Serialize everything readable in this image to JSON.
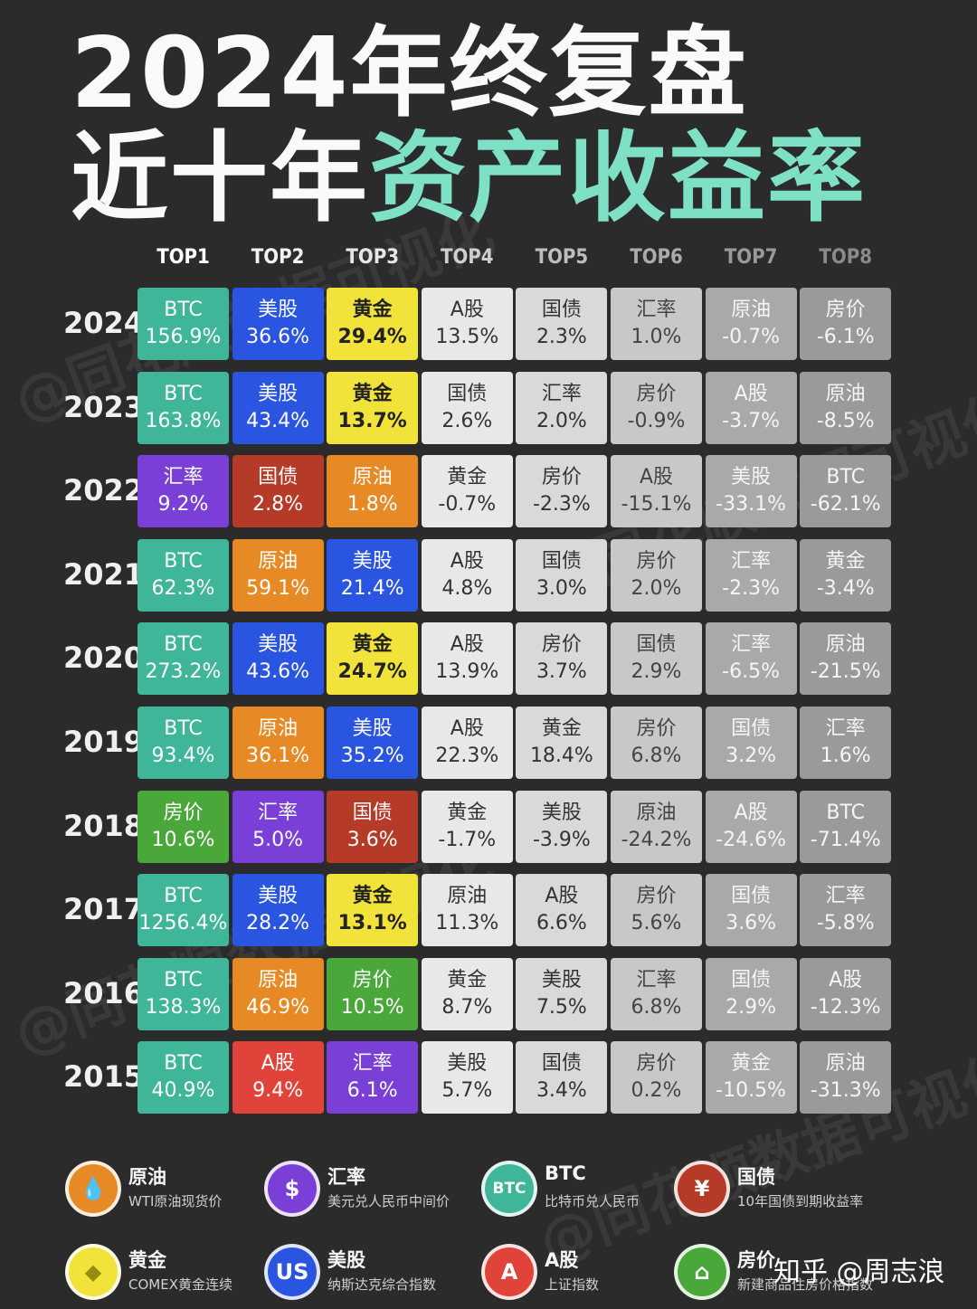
{
  "title": {
    "line1": "2024年终复盘",
    "line2_white": "近十年",
    "line2_accent": "资产收益率"
  },
  "watermark": "@同花顺数据可视化",
  "credit": "知乎 @周志浪",
  "colors": {
    "BTC": "#3fb59a",
    "美股": "#2a55e0",
    "黄金": "#f2e33a",
    "汇率": "#7a3fd6",
    "国债": "#b63a28",
    "原油": "#e78a25",
    "房价": "#4aa73a",
    "A股": "#e0433a",
    "top4": "#e8e8e8",
    "top5": "#d9d9d9",
    "top6": "#c8c8c8",
    "top7": "#a9a9a9",
    "top8": "#9a9a9a"
  },
  "chart_data": {
    "type": "table",
    "columns": [
      "TOP1",
      "TOP2",
      "TOP3",
      "TOP4",
      "TOP5",
      "TOP6",
      "TOP7",
      "TOP8"
    ],
    "rows": [
      {
        "year": "2024",
        "cells": [
          [
            "BTC",
            "156.9%"
          ],
          [
            "美股",
            "36.6%"
          ],
          [
            "黄金",
            "29.4%"
          ],
          [
            "A股",
            "13.5%"
          ],
          [
            "国债",
            "2.3%"
          ],
          [
            "汇率",
            "1.0%"
          ],
          [
            "原油",
            "-0.7%"
          ],
          [
            "房价",
            "-6.1%"
          ]
        ]
      },
      {
        "year": "2023",
        "cells": [
          [
            "BTC",
            "163.8%"
          ],
          [
            "美股",
            "43.4%"
          ],
          [
            "黄金",
            "13.7%"
          ],
          [
            "国债",
            "2.6%"
          ],
          [
            "汇率",
            "2.0%"
          ],
          [
            "房价",
            "-0.9%"
          ],
          [
            "A股",
            "-3.7%"
          ],
          [
            "原油",
            "-8.5%"
          ]
        ]
      },
      {
        "year": "2022",
        "cells": [
          [
            "汇率",
            "9.2%"
          ],
          [
            "国债",
            "2.8%"
          ],
          [
            "原油",
            "1.8%"
          ],
          [
            "黄金",
            "-0.7%"
          ],
          [
            "房价",
            "-2.3%"
          ],
          [
            "A股",
            "-15.1%"
          ],
          [
            "美股",
            "-33.1%"
          ],
          [
            "BTC",
            "-62.1%"
          ]
        ]
      },
      {
        "year": "2021",
        "cells": [
          [
            "BTC",
            "62.3%"
          ],
          [
            "原油",
            "59.1%"
          ],
          [
            "美股",
            "21.4%"
          ],
          [
            "A股",
            "4.8%"
          ],
          [
            "国债",
            "3.0%"
          ],
          [
            "房价",
            "2.0%"
          ],
          [
            "汇率",
            "-2.3%"
          ],
          [
            "黄金",
            "-3.4%"
          ]
        ]
      },
      {
        "year": "2020",
        "cells": [
          [
            "BTC",
            "273.2%"
          ],
          [
            "美股",
            "43.6%"
          ],
          [
            "黄金",
            "24.7%"
          ],
          [
            "A股",
            "13.9%"
          ],
          [
            "房价",
            "3.7%"
          ],
          [
            "国债",
            "2.9%"
          ],
          [
            "汇率",
            "-6.5%"
          ],
          [
            "原油",
            "-21.5%"
          ]
        ]
      },
      {
        "year": "2019",
        "cells": [
          [
            "BTC",
            "93.4%"
          ],
          [
            "原油",
            "36.1%"
          ],
          [
            "美股",
            "35.2%"
          ],
          [
            "A股",
            "22.3%"
          ],
          [
            "黄金",
            "18.4%"
          ],
          [
            "房价",
            "6.8%"
          ],
          [
            "国债",
            "3.2%"
          ],
          [
            "汇率",
            "1.6%"
          ]
        ]
      },
      {
        "year": "2018",
        "cells": [
          [
            "房价",
            "10.6%"
          ],
          [
            "汇率",
            "5.0%"
          ],
          [
            "国债",
            "3.6%"
          ],
          [
            "黄金",
            "-1.7%"
          ],
          [
            "美股",
            "-3.9%"
          ],
          [
            "原油",
            "-24.2%"
          ],
          [
            "A股",
            "-24.6%"
          ],
          [
            "BTC",
            "-71.4%"
          ]
        ]
      },
      {
        "year": "2017",
        "cells": [
          [
            "BTC",
            "1256.4%"
          ],
          [
            "美股",
            "28.2%"
          ],
          [
            "黄金",
            "13.1%"
          ],
          [
            "原油",
            "11.3%"
          ],
          [
            "A股",
            "6.6%"
          ],
          [
            "房价",
            "5.6%"
          ],
          [
            "国债",
            "3.6%"
          ],
          [
            "汇率",
            "-5.8%"
          ]
        ]
      },
      {
        "year": "2016",
        "cells": [
          [
            "BTC",
            "138.3%"
          ],
          [
            "原油",
            "46.9%"
          ],
          [
            "房价",
            "10.5%"
          ],
          [
            "黄金",
            "8.7%"
          ],
          [
            "美股",
            "7.5%"
          ],
          [
            "汇率",
            "6.8%"
          ],
          [
            "国债",
            "2.9%"
          ],
          [
            "A股",
            "-12.3%"
          ]
        ]
      },
      {
        "year": "2015",
        "cells": [
          [
            "BTC",
            "40.9%"
          ],
          [
            "A股",
            "9.4%"
          ],
          [
            "汇率",
            "6.1%"
          ],
          [
            "美股",
            "5.7%"
          ],
          [
            "国债",
            "3.4%"
          ],
          [
            "房价",
            "0.2%"
          ],
          [
            "黄金",
            "-10.5%"
          ],
          [
            "原油",
            "-31.3%"
          ]
        ]
      }
    ]
  },
  "legend": [
    {
      "name": "原油",
      "desc": "WTI原油现货价",
      "icon": "oil-drop-icon",
      "glyph": "💧",
      "color": "#e78a25"
    },
    {
      "name": "汇率",
      "desc": "美元兑人民币中间价",
      "icon": "dollar-icon",
      "glyph": "$",
      "color": "#7a3fd6"
    },
    {
      "name": "BTC",
      "desc": "比特币兑人民币",
      "icon": "btc-icon",
      "glyph": "BTC",
      "color": "#3fb59a"
    },
    {
      "name": "国债",
      "desc": "10年国债到期收益率",
      "icon": "bond-icon",
      "glyph": "¥",
      "color": "#b63a28"
    },
    {
      "name": "黄金",
      "desc": "COMEX黄金连续",
      "icon": "gold-icon",
      "glyph": "◆",
      "color": "#f2e33a"
    },
    {
      "name": "美股",
      "desc": "纳斯达克综合指数",
      "icon": "us-stock-icon",
      "glyph": "US",
      "color": "#2a55e0"
    },
    {
      "name": "A股",
      "desc": "上证指数",
      "icon": "a-stock-icon",
      "glyph": "A",
      "color": "#e0433a"
    },
    {
      "name": "房价",
      "desc": "新建商品住房价格指数",
      "icon": "house-icon",
      "glyph": "⌂",
      "color": "#4aa73a"
    }
  ]
}
